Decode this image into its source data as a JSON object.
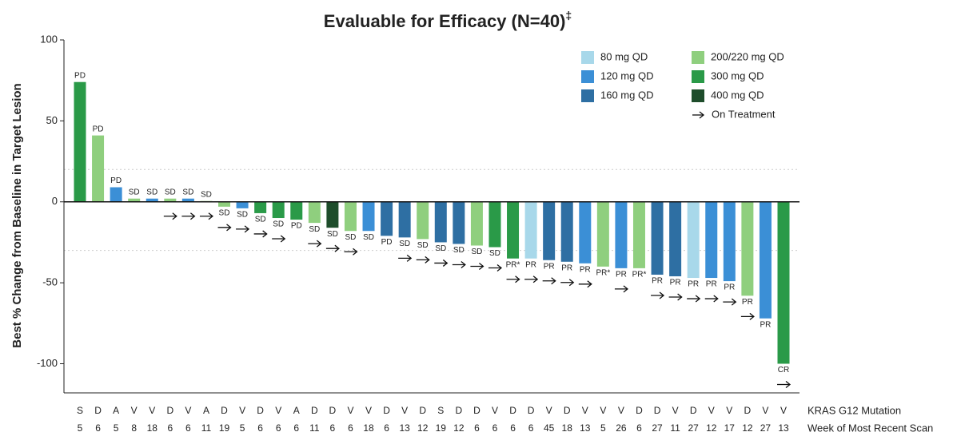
{
  "chart_data": {
    "type": "bar",
    "title": "Evaluable for Efficacy (N=40)",
    "title_note": "‡",
    "y_label": "Best % Change from Baseline in Target Lesion",
    "ylim": [
      -118,
      100
    ],
    "yticks": [
      -100,
      -50,
      0,
      50,
      100
    ],
    "ref_lines": [
      20,
      -30
    ],
    "values": [
      74,
      41,
      9,
      2,
      2,
      2,
      2,
      0.5,
      -3,
      -4,
      -7,
      -10,
      -11,
      -13,
      -16,
      -18,
      -18,
      -21,
      -22,
      -23,
      -25,
      -26,
      -27,
      -28,
      -35,
      -35,
      -36,
      -37,
      -38,
      -40,
      -41,
      -41,
      -45,
      -46,
      -47,
      -47,
      -49,
      -58,
      -72,
      -100
    ],
    "colors": [
      "#2a9a48",
      "#8fcf7e",
      "#3b8fd6",
      "#8fcf7e",
      "#3b8fd6",
      "#8fcf7e",
      "#3b8fd6",
      "#8fcf7e",
      "#8fcf7e",
      "#3b8fd6",
      "#2a9a48",
      "#2a9a48",
      "#2a9a48",
      "#8fcf7e",
      "#1e4d2b",
      "#8fcf7e",
      "#3b8fd6",
      "#2e6fa3",
      "#2e6fa3",
      "#8fcf7e",
      "#2e6fa3",
      "#2e6fa3",
      "#8fcf7e",
      "#2a9a48",
      "#2a9a48",
      "#a8d8ea",
      "#2e6fa3",
      "#2e6fa3",
      "#3b8fd6",
      "#8fcf7e",
      "#3b8fd6",
      "#8fcf7e",
      "#2e6fa3",
      "#2e6fa3",
      "#a8d8ea",
      "#3b8fd6",
      "#3b8fd6",
      "#8fcf7e",
      "#3b8fd6",
      "#2a9a48"
    ],
    "value_labels": [
      "PD",
      "PD",
      "PD",
      "SD",
      "SD",
      "SD",
      "SD",
      "SD",
      "SD",
      "SD",
      "SD",
      "SD",
      "PD",
      "SD",
      "SD",
      "SD",
      "SD",
      "PD",
      "SD",
      "SD",
      "SD",
      "SD",
      "SD",
      "SD",
      "PR*",
      "PR",
      "PR",
      "PR",
      "PR",
      "PR*",
      "PR",
      "PR*",
      "PR",
      "PR",
      "PR",
      "PR",
      "PR",
      "PR",
      "PR",
      "CR"
    ],
    "on_treatment": [
      false,
      false,
      false,
      false,
      false,
      true,
      true,
      true,
      true,
      true,
      true,
      true,
      false,
      true,
      true,
      true,
      false,
      false,
      true,
      true,
      true,
      true,
      true,
      true,
      true,
      true,
      true,
      true,
      true,
      false,
      true,
      false,
      true,
      true,
      true,
      true,
      true,
      true,
      false,
      true
    ],
    "rows": [
      {
        "name": "KRAS G12 Mutation",
        "values": [
          "S",
          "D",
          "A",
          "V",
          "V",
          "D",
          "V",
          "A",
          "D",
          "V",
          "D",
          "V",
          "A",
          "D",
          "D",
          "V",
          "V",
          "D",
          "V",
          "D",
          "S",
          "D",
          "D",
          "V",
          "D",
          "D",
          "V",
          "D",
          "V",
          "V",
          "V",
          "D",
          "D",
          "V",
          "D",
          "V",
          "V",
          "D",
          "V",
          "V"
        ]
      },
      {
        "name": "Week of Most Recent Scan",
        "values": [
          5,
          6,
          5,
          8,
          18,
          6,
          6,
          11,
          19,
          5,
          6,
          6,
          6,
          11,
          6,
          6,
          18,
          6,
          13,
          12,
          19,
          12,
          6,
          6,
          6,
          6,
          45,
          18,
          13,
          5,
          26,
          6,
          27,
          11,
          27,
          12,
          17,
          12,
          27,
          13
        ]
      }
    ],
    "legend": [
      {
        "name": "80 mg QD",
        "color": "#a8d8ea"
      },
      {
        "name": "120 mg QD",
        "color": "#3b8fd6"
      },
      {
        "name": "160 mg QD",
        "color": "#2e6fa3"
      },
      {
        "name": "200/220 mg QD",
        "color": "#8fcf7e"
      },
      {
        "name": "300 mg QD",
        "color": "#2a9a48"
      },
      {
        "name": "400 mg QD",
        "color": "#1e4d2b"
      }
    ],
    "arrow_legend": "On Treatment"
  }
}
